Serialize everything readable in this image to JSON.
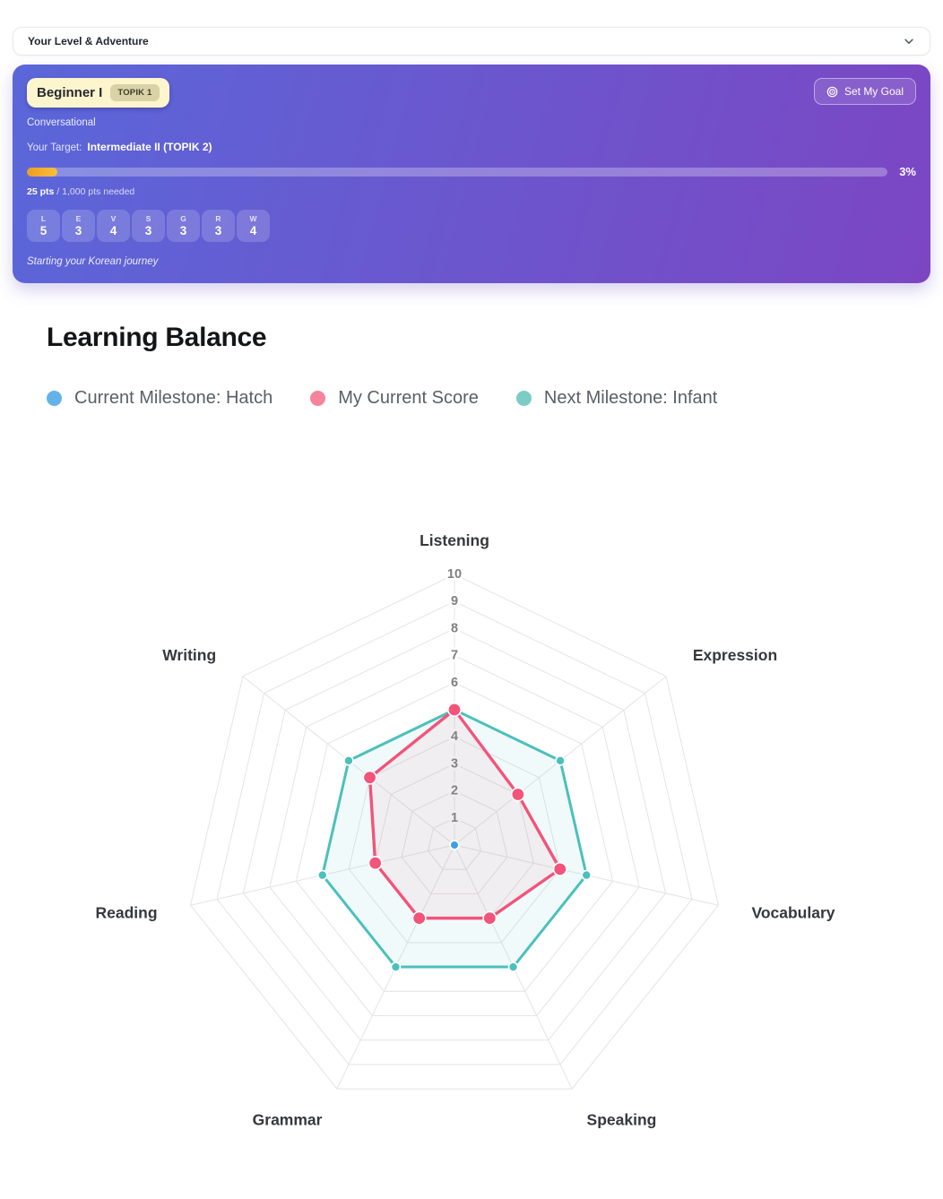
{
  "accordion": {
    "title": "Your Level & Adventure"
  },
  "colors": {
    "card_gradient": [
      "#5A67D9",
      "#7C46C3"
    ],
    "progress_gradient": [
      "#EF9C20",
      "#F8BE3E"
    ],
    "legend_blue": "#63B3E9",
    "legend_pink": "#F4849B",
    "legend_teal": "#7BCCC5"
  },
  "level_card": {
    "level": "Beginner I",
    "topik_badge": "TOPIK 1",
    "subtitle": "Conversational",
    "target_label": "Your Target:",
    "target_value": "Intermediate II (TOPIK 2)",
    "set_goal_button": "Set My Goal",
    "progress_percent": "3%",
    "progress_value": 3,
    "points_current": "25 pts",
    "points_rest": " / 1,000 pts needed",
    "tagline": "Starting your Korean journey",
    "skills": [
      {
        "letter": "L",
        "value": "5"
      },
      {
        "letter": "E",
        "value": "3"
      },
      {
        "letter": "V",
        "value": "4"
      },
      {
        "letter": "S",
        "value": "3"
      },
      {
        "letter": "G",
        "value": "3"
      },
      {
        "letter": "R",
        "value": "3"
      },
      {
        "letter": "W",
        "value": "4"
      }
    ]
  },
  "section": {
    "title": "Learning Balance"
  },
  "legend": [
    {
      "label": "Current Milestone: Hatch",
      "color": "#63B3E9"
    },
    {
      "label": "My Current Score",
      "color": "#F4849B"
    },
    {
      "label": "Next Milestone: Infant",
      "color": "#7BCCC5"
    }
  ],
  "chart_data": {
    "type": "radar",
    "title": "Learning Balance",
    "categories": [
      "Listening",
      "Expression",
      "Vocabulary",
      "Speaking",
      "Grammar",
      "Reading",
      "Writing"
    ],
    "series": [
      {
        "name": "Current Milestone: Hatch",
        "values": [
          0,
          0,
          0,
          0,
          0,
          0,
          0
        ],
        "line_color": "#3E9EE3",
        "fill_color": "none"
      },
      {
        "name": "My Current Score",
        "values": [
          5,
          3,
          4,
          3,
          3,
          3,
          4
        ],
        "line_color": "#F2547A",
        "fill_color": "rgba(242,84,122,0.07)"
      },
      {
        "name": "Next Milestone: Infant",
        "values": [
          5,
          5,
          5,
          5,
          5,
          5,
          5
        ],
        "line_color": "#4CC0BB",
        "fill_color": "rgba(76,192,187,0.08)"
      }
    ],
    "scale": {
      "min": 0,
      "max": 10,
      "ticks": [
        1,
        2,
        3,
        4,
        5,
        6,
        7,
        8,
        9,
        10
      ]
    },
    "grid": true,
    "legend_position": "top"
  }
}
